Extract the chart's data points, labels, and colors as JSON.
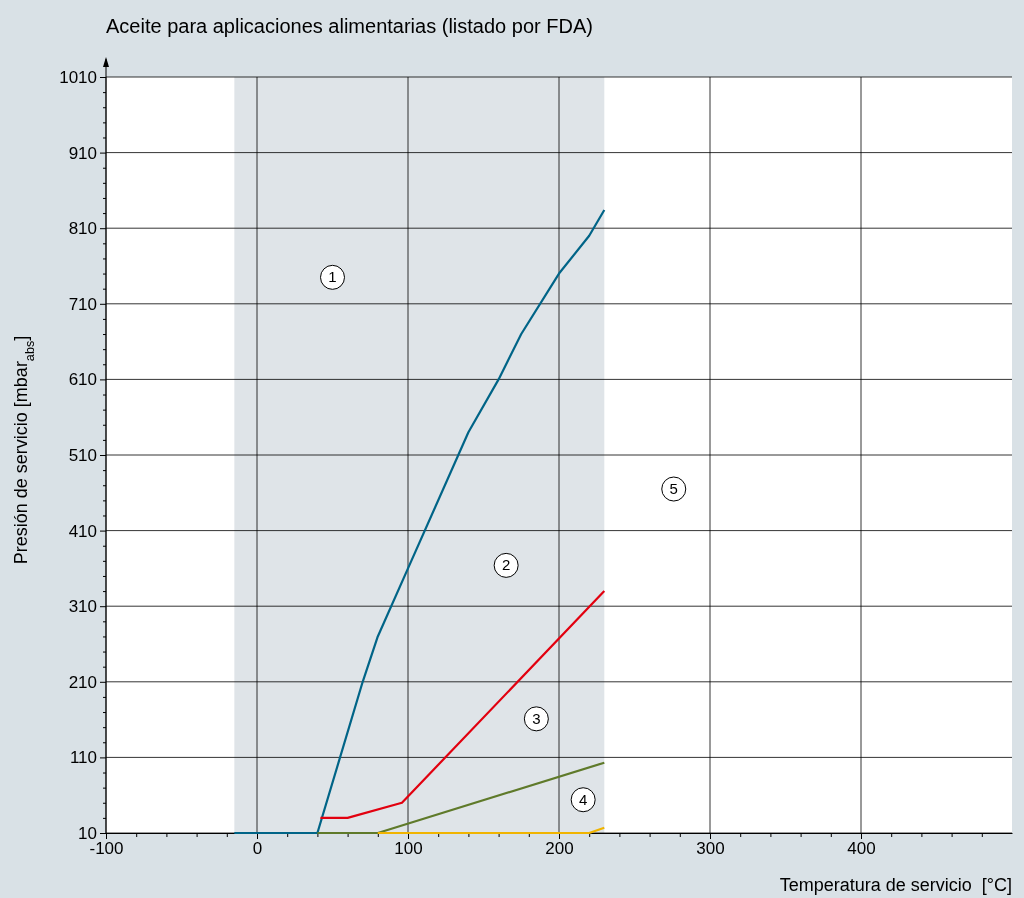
{
  "chart_data": {
    "type": "line",
    "title": "Aceite para aplicaciones alimentarias (listado por FDA)",
    "xlabel": "Temperatura de servicio  [°C]",
    "ylabel": "Presión de servicio [mbar$_{abs}$]",
    "xlim": [
      -100,
      500
    ],
    "ylim": [
      10,
      1010
    ],
    "xticks": [
      -100,
      {
        "value": -80,
        "label": null
      },
      {
        "value": -60,
        "label": null
      },
      {
        "value": -40,
        "label": null
      },
      {
        "value": -20,
        "label": null
      },
      0,
      {
        "value": 20,
        "label": null
      },
      {
        "value": 40,
        "label": null
      },
      {
        "value": 60,
        "label": null
      },
      {
        "value": 80,
        "label": null
      },
      100,
      {
        "value": 120,
        "label": null
      },
      {
        "value": 140,
        "label": null
      },
      {
        "value": 160,
        "label": null
      },
      {
        "value": 180,
        "label": null
      },
      200,
      {
        "value": 220,
        "label": null
      },
      {
        "value": 240,
        "label": null
      },
      {
        "value": 260,
        "label": null
      },
      {
        "value": 280,
        "label": null
      },
      300,
      {
        "value": 320,
        "label": null
      },
      {
        "value": 340,
        "label": null
      },
      {
        "value": 360,
        "label": null
      },
      {
        "value": 380,
        "label": null
      },
      400,
      {
        "value": 420,
        "label": null
      },
      {
        "value": 440,
        "label": null
      },
      {
        "value": 460,
        "label": null
      },
      {
        "value": 480,
        "label": null
      }
    ],
    "yticks": [
      10,
      {
        "value": 30,
        "label": null
      },
      {
        "value": 50,
        "label": null
      },
      {
        "value": 70,
        "label": null
      },
      {
        "value": 90,
        "label": null
      },
      110,
      {
        "value": 130,
        "label": null
      },
      {
        "value": 150,
        "label": null
      },
      {
        "value": 170,
        "label": null
      },
      {
        "value": 190,
        "label": null
      },
      210,
      {
        "value": 230,
        "label": null
      },
      {
        "value": 250,
        "label": null
      },
      {
        "value": 270,
        "label": null
      },
      {
        "value": 290,
        "label": null
      },
      310,
      {
        "value": 330,
        "label": null
      },
      {
        "value": 350,
        "label": null
      },
      {
        "value": 370,
        "label": null
      },
      {
        "value": 390,
        "label": null
      },
      410,
      {
        "value": 430,
        "label": null
      },
      {
        "value": 450,
        "label": null
      },
      {
        "value": 470,
        "label": null
      },
      {
        "value": 490,
        "label": null
      },
      510,
      {
        "value": 530,
        "label": null
      },
      {
        "value": 550,
        "label": null
      },
      {
        "value": 570,
        "label": null
      },
      {
        "value": 590,
        "label": null
      },
      610,
      {
        "value": 630,
        "label": null
      },
      {
        "value": 650,
        "label": null
      },
      {
        "value": 670,
        "label": null
      },
      {
        "value": 690,
        "label": null
      },
      710,
      {
        "value": 730,
        "label": null
      },
      {
        "value": 750,
        "label": null
      },
      {
        "value": 770,
        "label": null
      },
      {
        "value": 790,
        "label": null
      },
      810,
      {
        "value": 830,
        "label": null
      },
      {
        "value": 850,
        "label": null
      },
      {
        "value": 870,
        "label": null
      },
      {
        "value": 890,
        "label": null
      },
      910,
      {
        "value": 930,
        "label": null
      },
      {
        "value": 950,
        "label": null
      },
      {
        "value": 970,
        "label": null
      },
      {
        "value": 990,
        "label": null
      },
      1010
    ],
    "grid": true,
    "marker": "none",
    "line_style": "solid",
    "bands": [
      {
        "axis": "x",
        "from": -15,
        "to": 230,
        "color": "#dfe4e8"
      }
    ],
    "series": [
      {
        "color": "#006487",
        "x": [
          -15,
          40,
          70,
          80,
          100,
          140,
          160,
          175,
          200,
          220,
          230
        ],
        "values": [
          10,
          10,
          210,
          270,
          360,
          540,
          610,
          670,
          750,
          800,
          834
        ]
      },
      {
        "color": "#e2000f",
        "x": [
          42,
          60,
          96,
          230
        ],
        "values": [
          30,
          30,
          50,
          330
        ]
      },
      {
        "color": "#5f7a2a",
        "x": [
          40,
          80,
          230
        ],
        "values": [
          10,
          10,
          103
        ]
      },
      {
        "color": "#f0b400",
        "x": [
          80,
          220,
          230
        ],
        "values": [
          10,
          10,
          17
        ]
      }
    ],
    "annotations": [
      {
        "text": "1",
        "x": 50,
        "y": 745
      },
      {
        "text": "2",
        "x": 165,
        "y": 364
      },
      {
        "text": "3",
        "x": 185,
        "y": 161
      },
      {
        "text": "4",
        "x": 216,
        "y": 54
      },
      {
        "text": "5",
        "x": 276,
        "y": 465
      }
    ]
  }
}
